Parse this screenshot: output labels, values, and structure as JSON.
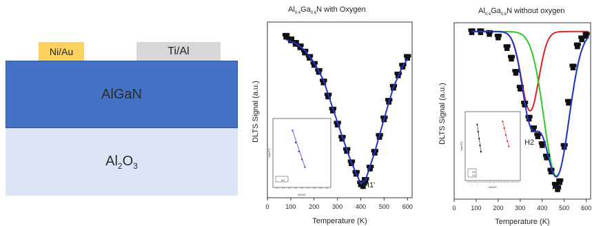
{
  "schematic": {
    "contact_left": "Ni/Au",
    "contact_right": "Ti/Al",
    "layer_algan": "AlGaN",
    "substrate_main": "Al",
    "substrate_sub": "2",
    "substrate_tail": "O",
    "substrate_sub2": "3",
    "colors": {
      "contact_left": "#fbd25d",
      "contact_right": "#d7d7d7",
      "algan": "#4472c4",
      "substrate": "#dbe5f5"
    }
  },
  "chart_data": [
    {
      "type": "line",
      "title_parts": {
        "a": "Al",
        "b": "0.4",
        "c": "Ga",
        "d": "0.6",
        "e": "N with Oxygen"
      },
      "xlabel": "Temperature (K)",
      "ylabel": "DLTS Signal (a.u.)",
      "xlim": [
        0,
        620
      ],
      "x_ticks": [
        "0",
        "100",
        "200",
        "300",
        "400",
        "500",
        "600"
      ],
      "peak_label": "H1'",
      "series": [
        {
          "style": "black-squares",
          "x": [
            80,
            100,
            120,
            140,
            160,
            180,
            200,
            220,
            240,
            260,
            280,
            300,
            320,
            340,
            360,
            380,
            400,
            410,
            420,
            440,
            460,
            480,
            500,
            520,
            540,
            560,
            580,
            600
          ],
          "y": [
            0.92,
            0.9,
            0.88,
            0.86,
            0.83,
            0.8,
            0.76,
            0.72,
            0.66,
            0.58,
            0.5,
            0.42,
            0.34,
            0.27,
            0.2,
            0.14,
            0.08,
            0.07,
            0.1,
            0.17,
            0.26,
            0.35,
            0.45,
            0.55,
            0.63,
            0.7,
            0.75,
            0.8
          ]
        },
        {
          "style": "blue-line",
          "x": [
            80,
            120,
            160,
            200,
            240,
            280,
            320,
            360,
            400,
            420,
            460,
            500,
            540,
            580,
            600
          ],
          "y": [
            0.9,
            0.88,
            0.84,
            0.77,
            0.67,
            0.51,
            0.35,
            0.2,
            0.08,
            0.1,
            0.26,
            0.45,
            0.63,
            0.75,
            0.79
          ]
        }
      ],
      "inset": {
        "xlabel": "1000/T",
        "ylabel": "ln(e/T²)",
        "legend": "H1'",
        "x_ticks": [
          "2.2",
          "2.3",
          "2.4",
          "2.5",
          "2.6",
          "2.7",
          "2.8",
          "2.9",
          "3.0"
        ],
        "points": [
          [
            2.45,
            0.85
          ],
          [
            2.5,
            0.62
          ],
          [
            2.55,
            0.45
          ],
          [
            2.6,
            0.3
          ],
          [
            2.65,
            0.15
          ]
        ]
      }
    },
    {
      "type": "line",
      "title_parts": {
        "a": "Al",
        "b": "0.4",
        "c": "Ga",
        "d": "0.6",
        "e": "N without oxygen"
      },
      "xlabel": "Temperature (K)",
      "ylabel": "DLTS Signal (a.u.)",
      "xlim": [
        0,
        620
      ],
      "x_ticks": [
        "0",
        "100",
        "200",
        "300",
        "400",
        "500",
        "600"
      ],
      "peak_labels": [
        "H2",
        "H1"
      ],
      "series": [
        {
          "style": "black-squares",
          "x": [
            80,
            120,
            160,
            200,
            240,
            260,
            280,
            300,
            320,
            340,
            360,
            380,
            400,
            420,
            440,
            460,
            470,
            480,
            500,
            520,
            540,
            560,
            580,
            600
          ],
          "y": [
            0.95,
            0.95,
            0.94,
            0.92,
            0.86,
            0.8,
            0.72,
            0.63,
            0.54,
            0.46,
            0.4,
            0.36,
            0.31,
            0.24,
            0.16,
            0.08,
            0.06,
            0.1,
            0.3,
            0.55,
            0.75,
            0.87,
            0.91,
            0.93
          ]
        },
        {
          "style": "red-gauss",
          "center": 345,
          "width": 55,
          "depth": 0.45,
          "baseline": 0.95
        },
        {
          "style": "green-gauss",
          "center": 465,
          "width": 80,
          "depth": 0.82,
          "baseline": 0.95
        },
        {
          "style": "blue-sum"
        }
      ],
      "inset": {
        "xlabel": "1000/T",
        "ylabel": "ln(e/T²)",
        "legend": [
          "H1",
          "H2"
        ],
        "x_ticks": [
          "1.8",
          "1.9",
          "2.0",
          "2.1",
          "2.2",
          "2.3",
          "2.4",
          "2.5",
          "2.6",
          "2.7",
          "2.8",
          "2.9",
          "3.0",
          "3.1",
          "3.2",
          "3.3",
          "3.4"
        ],
        "points_black": [
          [
            2.1,
            0.82
          ],
          [
            2.13,
            0.68
          ],
          [
            2.16,
            0.55
          ],
          [
            2.19,
            0.42
          ],
          [
            2.22,
            0.3
          ]
        ],
        "points_red": [
          [
            2.92,
            0.88
          ],
          [
            2.97,
            0.75
          ],
          [
            3.02,
            0.62
          ],
          [
            3.07,
            0.5
          ],
          [
            3.12,
            0.4
          ]
        ]
      }
    }
  ]
}
